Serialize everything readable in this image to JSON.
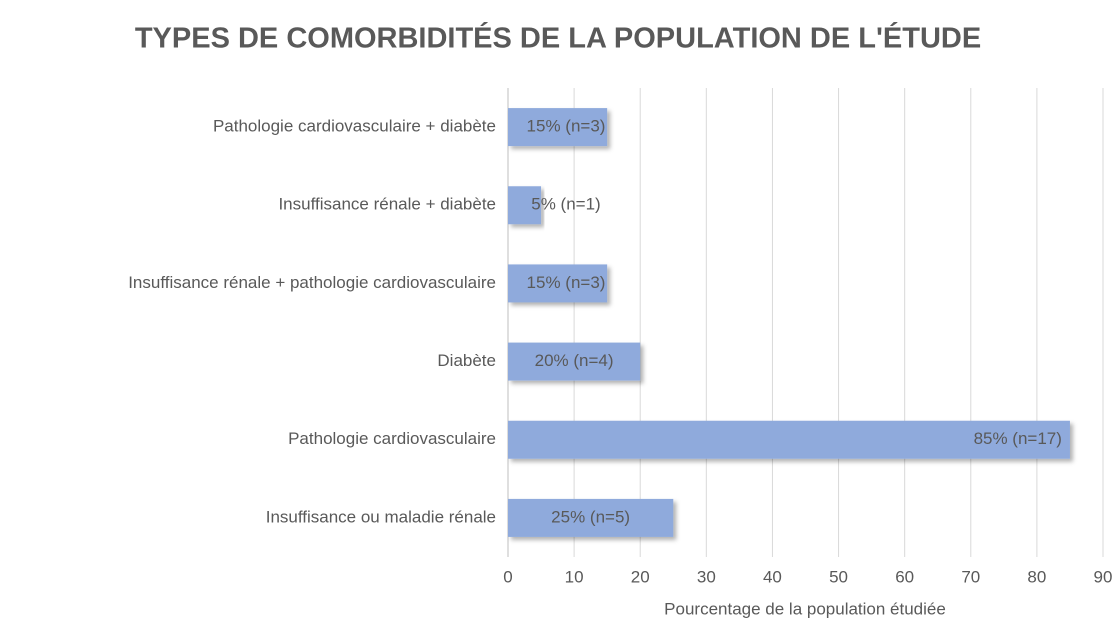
{
  "chart_data": {
    "type": "bar",
    "orientation": "horizontal",
    "title": "TYPES DE COMORBIDITÉS DE LA POPULATION DE L'ÉTUDE",
    "xlabel": "Pourcentage de la population étudiée",
    "categories": [
      "Pathologie cardiovasculaire + diabète",
      "Insuffisance rénale + diabète",
      "Insuffisance rénale + pathologie cardiovasculaire",
      "Diabète",
      "Pathologie cardiovasculaire",
      "Insuffisance ou maladie rénale"
    ],
    "values": [
      15,
      5,
      15,
      20,
      85,
      25
    ],
    "value_labels": [
      "15% (n=3)",
      "5% (n=1)",
      "15% (n=3)",
      "20% (n=4)",
      "85% (n=17)",
      "25% (n=5)"
    ],
    "color": "#8faadc",
    "xlim": [
      0,
      90
    ],
    "xticks": [
      0,
      10,
      20,
      30,
      40,
      50,
      60,
      70,
      80,
      90
    ],
    "grid": true
  }
}
